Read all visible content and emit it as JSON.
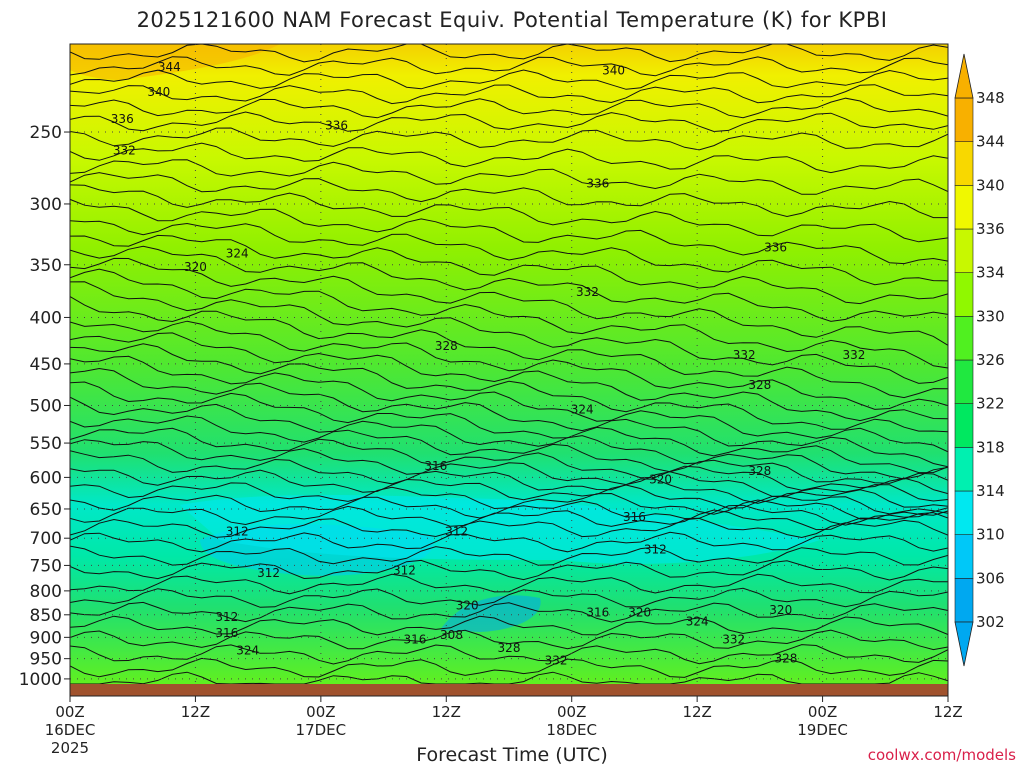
{
  "chart_data": {
    "type": "heatmap",
    "title": "2025121600 NAM Forecast Equiv. Potential Temperature (K) for KPBI",
    "xlabel": "Forecast Time (UTC)",
    "ylabel": "",
    "x_ticks": [
      {
        "hours": 0,
        "label": "00Z",
        "date": "16DEC",
        "year": "2025"
      },
      {
        "hours": 12,
        "label": "12Z",
        "date": "",
        "year": ""
      },
      {
        "hours": 24,
        "label": "00Z",
        "date": "17DEC",
        "year": ""
      },
      {
        "hours": 36,
        "label": "12Z",
        "date": "",
        "year": ""
      },
      {
        "hours": 48,
        "label": "00Z",
        "date": "18DEC",
        "year": ""
      },
      {
        "hours": 60,
        "label": "12Z",
        "date": "",
        "year": ""
      },
      {
        "hours": 72,
        "label": "00Z",
        "date": "19DEC",
        "year": ""
      },
      {
        "hours": 84,
        "label": "12Z",
        "date": "",
        "year": ""
      }
    ],
    "xlim_hours": [
      0,
      84
    ],
    "y_ticks": [
      250,
      300,
      350,
      400,
      450,
      500,
      550,
      600,
      650,
      700,
      750,
      800,
      850,
      900,
      950,
      1000
    ],
    "ylim_hPa": [
      200,
      1013
    ],
    "y_scale": "log-pressure",
    "grid": true,
    "colorbar": {
      "ticks": [
        302,
        306,
        310,
        314,
        318,
        322,
        326,
        330,
        334,
        336,
        340,
        344,
        348
      ],
      "colors": [
        "#00a8f0",
        "#00c8f8",
        "#00e8f0",
        "#00f0b0",
        "#00e860",
        "#20e840",
        "#50f020",
        "#90f800",
        "#c8f800",
        "#f0f800",
        "#f8d800",
        "#f8b000"
      ]
    },
    "contour_labels": [
      {
        "value": "344",
        "hours": 9.5,
        "p": 212
      },
      {
        "value": "340",
        "hours": 8.5,
        "p": 226
      },
      {
        "value": "336",
        "hours": 5.0,
        "p": 242
      },
      {
        "value": "332",
        "hours": 5.2,
        "p": 262
      },
      {
        "value": "336",
        "hours": 25.5,
        "p": 246
      },
      {
        "value": "340",
        "hours": 52.0,
        "p": 214
      },
      {
        "value": "336",
        "hours": 50.5,
        "p": 285
      },
      {
        "value": "332",
        "hours": 49.5,
        "p": 375
      },
      {
        "value": "328",
        "hours": 36.0,
        "p": 430
      },
      {
        "value": "324",
        "hours": 16.0,
        "p": 340
      },
      {
        "value": "320",
        "hours": 12.0,
        "p": 352
      },
      {
        "value": "324",
        "hours": 49.0,
        "p": 505
      },
      {
        "value": "316",
        "hours": 35.0,
        "p": 583
      },
      {
        "value": "320",
        "hours": 56.5,
        "p": 603
      },
      {
        "value": "316",
        "hours": 54.0,
        "p": 663
      },
      {
        "value": "312",
        "hours": 16.0,
        "p": 688
      },
      {
        "value": "312",
        "hours": 37.0,
        "p": 688
      },
      {
        "value": "312",
        "hours": 56.0,
        "p": 720
      },
      {
        "value": "312",
        "hours": 19.0,
        "p": 765
      },
      {
        "value": "312",
        "hours": 32.0,
        "p": 760
      },
      {
        "value": "312",
        "hours": 15.0,
        "p": 855
      },
      {
        "value": "316",
        "hours": 15.0,
        "p": 890
      },
      {
        "value": "324",
        "hours": 17.0,
        "p": 930
      },
      {
        "value": "316",
        "hours": 33.0,
        "p": 905
      },
      {
        "value": "308",
        "hours": 36.5,
        "p": 895
      },
      {
        "value": "320",
        "hours": 38.0,
        "p": 830
      },
      {
        "value": "316",
        "hours": 50.5,
        "p": 845
      },
      {
        "value": "320",
        "hours": 54.5,
        "p": 845
      },
      {
        "value": "324",
        "hours": 60.0,
        "p": 865
      },
      {
        "value": "332",
        "hours": 63.5,
        "p": 905
      },
      {
        "value": "332",
        "hours": 46.5,
        "p": 955
      },
      {
        "value": "328",
        "hours": 42.0,
        "p": 925
      },
      {
        "value": "320",
        "hours": 68.0,
        "p": 840
      },
      {
        "value": "328",
        "hours": 68.5,
        "p": 950
      },
      {
        "value": "332",
        "hours": 64.5,
        "p": 440
      },
      {
        "value": "328",
        "hours": 66.0,
        "p": 475
      },
      {
        "value": "328",
        "hours": 66.0,
        "p": 590
      },
      {
        "value": "336",
        "hours": 67.5,
        "p": 335
      },
      {
        "value": "332",
        "hours": 75.0,
        "p": 440
      }
    ]
  },
  "credit": "coolwx.com/models"
}
